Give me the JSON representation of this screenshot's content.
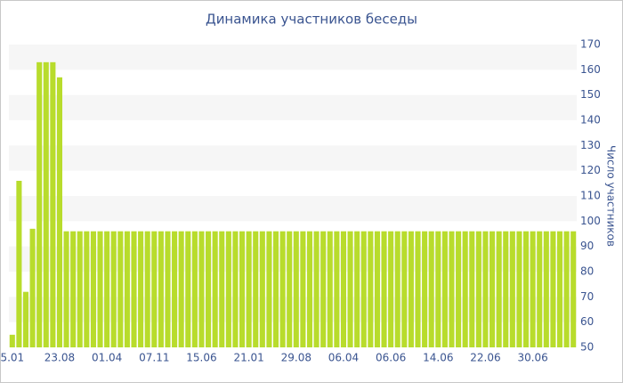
{
  "chart_data": {
    "type": "bar",
    "title": "Динамика участников беседы",
    "y_label": "Число участников",
    "categories": [
      "5.01",
      null,
      null,
      null,
      null,
      null,
      null,
      "23.08",
      null,
      null,
      null,
      null,
      null,
      null,
      "01.04",
      null,
      null,
      null,
      null,
      null,
      null,
      "07.11",
      null,
      null,
      null,
      null,
      null,
      null,
      "15.06",
      null,
      null,
      null,
      null,
      null,
      null,
      "21.01",
      null,
      null,
      null,
      null,
      null,
      null,
      "29.08",
      null,
      null,
      null,
      null,
      null,
      null,
      "06.04",
      null,
      null,
      null,
      null,
      null,
      null,
      "06.06",
      null,
      null,
      null,
      null,
      null,
      null,
      "14.06",
      null,
      null,
      null,
      null,
      null,
      null,
      "22.06",
      null,
      null,
      null,
      null,
      null,
      null,
      "30.06",
      null,
      null,
      null,
      null,
      null,
      null
    ],
    "values": [
      55,
      116,
      72,
      97,
      163,
      163,
      163,
      157,
      96,
      96,
      96,
      96,
      96,
      96,
      96,
      96,
      96,
      96,
      96,
      96,
      96,
      96,
      96,
      96,
      96,
      96,
      96,
      96,
      96,
      96,
      96,
      96,
      96,
      96,
      96,
      96,
      96,
      96,
      96,
      96,
      96,
      96,
      96,
      96,
      96,
      96,
      96,
      96,
      96,
      96,
      96,
      96,
      96,
      96,
      96,
      96,
      96,
      96,
      96,
      96,
      96,
      96,
      96,
      96,
      96,
      96,
      96,
      96,
      96,
      96,
      96,
      96,
      96,
      96,
      96,
      96,
      96,
      96,
      96,
      96,
      96,
      96,
      96,
      96
    ],
    "color": "#b8dc2c",
    "ylim": [
      50,
      170
    ],
    "yticks": [
      50,
      60,
      70,
      80,
      90,
      100,
      110,
      120,
      130,
      140,
      150,
      160,
      170
    ],
    "grid": true,
    "y_axis_side": "right"
  }
}
